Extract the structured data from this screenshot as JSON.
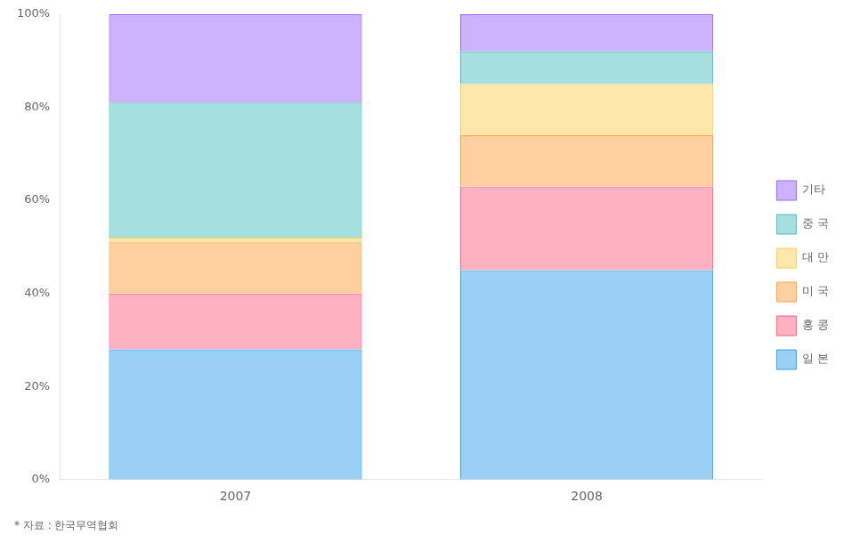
{
  "chart_data": {
    "type": "bar",
    "stacked": true,
    "categories": [
      "2007",
      "2008"
    ],
    "series": [
      {
        "name": "일 본",
        "values": [
          28,
          45
        ]
      },
      {
        "name": "홍 콩",
        "values": [
          12,
          18
        ]
      },
      {
        "name": "미 국",
        "values": [
          11,
          11
        ]
      },
      {
        "name": "대 만",
        "values": [
          1,
          11
        ]
      },
      {
        "name": "중 국",
        "values": [
          29,
          7
        ]
      },
      {
        "name": "기타",
        "values": [
          19,
          8
        ]
      }
    ],
    "ylim": [
      0,
      100
    ],
    "yticks": [
      {
        "value": 0,
        "label": "0%"
      },
      {
        "value": 20,
        "label": "20%"
      },
      {
        "value": 40,
        "label": "40%"
      },
      {
        "value": 60,
        "label": "60%"
      },
      {
        "value": 80,
        "label": "80%"
      },
      {
        "value": 100,
        "label": "100%"
      }
    ],
    "grid": false,
    "legend": "right",
    "annotations": [
      "* 자료 : 한국무역협회"
    ]
  }
}
